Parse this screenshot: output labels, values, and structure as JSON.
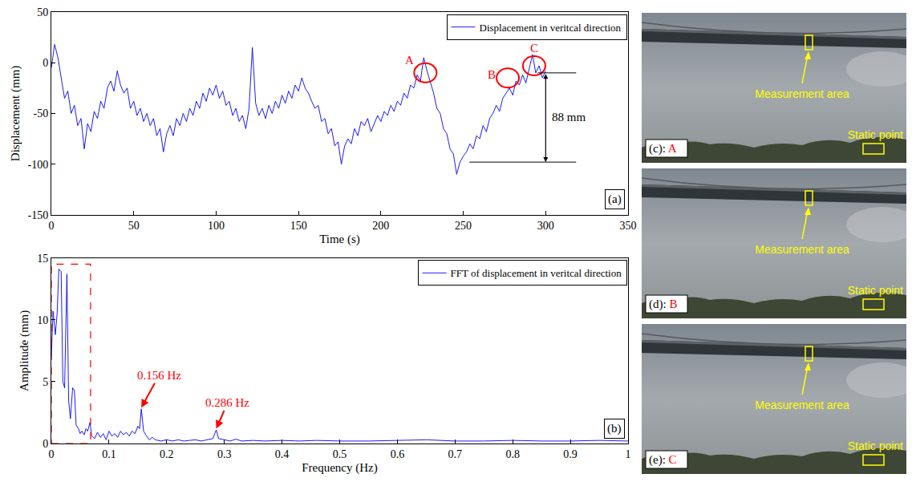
{
  "chart_data": [
    {
      "type": "line",
      "panel": "(a)",
      "x_label": "Time (s)",
      "y_label": "Displacement (mm)",
      "xlim": [
        0,
        350
      ],
      "xticks": [
        0,
        50,
        100,
        150,
        200,
        250,
        300,
        350
      ],
      "ylim": [
        -150,
        50
      ],
      "yticks": [
        -150,
        -100,
        -50,
        0,
        50
      ],
      "grid": false,
      "legend": "top-right",
      "series": [
        {
          "name": "Displacement in veritcal direction",
          "color": "#0000ff",
          "x": [
            0,
            2,
            4,
            6,
            8,
            10,
            12,
            14,
            16,
            18,
            20,
            22,
            24,
            26,
            28,
            30,
            32,
            34,
            36,
            38,
            40,
            42,
            44,
            46,
            48,
            50,
            52,
            54,
            56,
            58,
            60,
            62,
            64,
            66,
            68,
            70,
            72,
            74,
            76,
            78,
            80,
            82,
            84,
            86,
            88,
            90,
            92,
            94,
            96,
            98,
            100,
            102,
            104,
            106,
            108,
            110,
            112,
            114,
            116,
            118,
            120,
            122,
            124,
            126,
            128,
            130,
            132,
            134,
            136,
            138,
            140,
            142,
            144,
            146,
            148,
            150,
            152,
            154,
            156,
            158,
            160,
            162,
            164,
            166,
            168,
            170,
            172,
            174,
            176,
            178,
            180,
            182,
            184,
            186,
            188,
            190,
            192,
            194,
            196,
            198,
            200,
            202,
            204,
            206,
            208,
            210,
            212,
            214,
            216,
            218,
            220,
            222,
            224,
            226,
            228,
            230,
            232,
            234,
            236,
            238,
            240,
            242,
            244,
            246,
            248,
            250,
            252,
            254,
            256,
            258,
            260,
            262,
            264,
            266,
            268,
            270,
            272,
            274,
            276,
            278,
            280,
            282,
            284,
            286,
            288,
            290,
            292,
            294,
            296,
            298,
            300
          ],
          "values": [
            -5,
            18,
            5,
            -15,
            -35,
            -28,
            -50,
            -42,
            -62,
            -55,
            -85,
            -60,
            -68,
            -48,
            -55,
            -38,
            -45,
            -25,
            -18,
            -28,
            -8,
            -22,
            -30,
            -25,
            -45,
            -38,
            -52,
            -45,
            -58,
            -50,
            -62,
            -55,
            -72,
            -65,
            -88,
            -70,
            -62,
            -72,
            -55,
            -62,
            -50,
            -58,
            -45,
            -52,
            -38,
            -45,
            -30,
            -38,
            -25,
            -32,
            -22,
            -35,
            -28,
            -42,
            -38,
            -52,
            -45,
            -58,
            -52,
            -65,
            -45,
            15,
            -40,
            -52,
            -45,
            -55,
            -42,
            -50,
            -38,
            -45,
            -32,
            -40,
            -28,
            -35,
            -22,
            -28,
            -15,
            -25,
            -30,
            -38,
            -45,
            -42,
            -58,
            -55,
            -70,
            -65,
            -82,
            -78,
            -100,
            -82,
            -75,
            -80,
            -65,
            -72,
            -58,
            -62,
            -55,
            -68,
            -60,
            -52,
            -58,
            -48,
            -52,
            -42,
            -48,
            -38,
            -42,
            -30,
            -35,
            -22,
            -25,
            -12,
            -18,
            5,
            -8,
            -20,
            -30,
            -45,
            -50,
            -65,
            -70,
            -85,
            -90,
            -110,
            -98,
            -92,
            -88,
            -80,
            -85,
            -72,
            -75,
            -62,
            -68,
            -55,
            -50,
            -42,
            -48,
            -35,
            -30,
            -25,
            -32,
            -18,
            -22,
            -12,
            -20,
            -5,
            8,
            -10,
            -3,
            -15,
            -8
          ]
        }
      ],
      "annotations": [
        {
          "text": "A",
          "x": 227,
          "y": -10
        },
        {
          "text": "B",
          "x": 277,
          "y": -15
        },
        {
          "text": "C",
          "x": 293,
          "y": -3
        }
      ],
      "bracket": {
        "label": "88 mm",
        "x": 300,
        "y_low": -98,
        "y_high": -10
      }
    },
    {
      "type": "line",
      "panel": "(b)",
      "x_label": "Frequency (Hz)",
      "y_label": "Amplitude (mm)",
      "xlim": [
        0,
        1
      ],
      "xticks": [
        0,
        0.1,
        0.2,
        0.3,
        0.4,
        0.5,
        0.6,
        0.7,
        0.8,
        0.9,
        1
      ],
      "ylim": [
        0,
        15
      ],
      "yticks": [
        0,
        5,
        10,
        15
      ],
      "grid": false,
      "legend": "top-right",
      "series": [
        {
          "name": "FFT of displacement in veritcal direction",
          "color": "#0000ff",
          "x": [
            0,
            0.003,
            0.007,
            0.01,
            0.013,
            0.017,
            0.02,
            0.023,
            0.027,
            0.03,
            0.033,
            0.037,
            0.04,
            0.043,
            0.047,
            0.05,
            0.053,
            0.057,
            0.06,
            0.063,
            0.067,
            0.07,
            0.075,
            0.08,
            0.085,
            0.09,
            0.095,
            0.1,
            0.105,
            0.11,
            0.115,
            0.12,
            0.125,
            0.13,
            0.135,
            0.14,
            0.145,
            0.15,
            0.153,
            0.156,
            0.16,
            0.165,
            0.17,
            0.175,
            0.18,
            0.19,
            0.2,
            0.21,
            0.22,
            0.23,
            0.24,
            0.25,
            0.26,
            0.27,
            0.28,
            0.286,
            0.29,
            0.3,
            0.31,
            0.32,
            0.33,
            0.35,
            0.37,
            0.4,
            0.43,
            0.46,
            0.5,
            0.55,
            0.6,
            0.65,
            0.7,
            0.75,
            0.8,
            0.85,
            0.9,
            0.95,
            1
          ],
          "values": [
            7,
            10.7,
            8.8,
            10.5,
            14.1,
            13.9,
            5,
            4.5,
            13.7,
            3.5,
            2,
            4.5,
            4.3,
            1.5,
            1.2,
            0.8,
            1,
            0.7,
            1.2,
            1,
            1.7,
            0.6,
            0.4,
            0.9,
            0.5,
            0.8,
            0.3,
            1,
            0.6,
            0.8,
            0.5,
            1,
            0.7,
            0.9,
            0.6,
            1,
            0.8,
            1.4,
            1.2,
            2.8,
            1,
            0.6,
            0.3,
            0.5,
            0.3,
            0.2,
            0.3,
            0.2,
            0.3,
            0.2,
            0.25,
            0.3,
            0.2,
            0.3,
            0.4,
            1.1,
            0.4,
            0.3,
            0.2,
            0.35,
            0.2,
            0.25,
            0.2,
            0.25,
            0.2,
            0.25,
            0.2,
            0.2,
            0.25,
            0.3,
            0.2,
            0.2,
            0.25,
            0.2,
            0.2,
            0.25,
            0.2
          ]
        }
      ],
      "peaks": [
        {
          "label": "0.156 Hz",
          "x": 0.156,
          "y": 2.9
        },
        {
          "label": "0.286 Hz",
          "x": 0.286,
          "y": 1.2
        }
      ],
      "highlight": {
        "x0": 0,
        "x1": 0.068,
        "y0": 0,
        "y1": 14.5
      }
    }
  ],
  "photos": {
    "measurement_label": "Measurement area",
    "static_label": "Static point",
    "panels": [
      {
        "label": "(c):",
        "point": "A"
      },
      {
        "label": "(d):",
        "point": "B"
      },
      {
        "label": "(e):",
        "point": "C"
      }
    ]
  }
}
